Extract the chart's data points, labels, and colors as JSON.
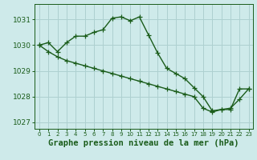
{
  "title": "Graphe pression niveau de la mer (hPa)",
  "bg_color": "#ceeaea",
  "line_color": "#1a5c1a",
  "grid_color": "#aed0d0",
  "ylim": [
    1026.75,
    1031.6
  ],
  "xlim": [
    -0.5,
    23.5
  ],
  "yticks": [
    1027,
    1028,
    1029,
    1030,
    1031
  ],
  "xticks": [
    0,
    1,
    2,
    3,
    4,
    5,
    6,
    7,
    8,
    9,
    10,
    11,
    12,
    13,
    14,
    15,
    16,
    17,
    18,
    19,
    20,
    21,
    22,
    23
  ],
  "series1_x": [
    0,
    1,
    2,
    3,
    4,
    5,
    6,
    7,
    8,
    9,
    10,
    11,
    12,
    13,
    14,
    15,
    16,
    17,
    18,
    19,
    20,
    21,
    22,
    23
  ],
  "series1_y": [
    1030.0,
    1030.1,
    1029.75,
    1030.1,
    1030.35,
    1030.35,
    1030.5,
    1030.6,
    1031.05,
    1031.1,
    1030.95,
    1031.1,
    1030.4,
    1029.7,
    1029.1,
    1028.9,
    1028.7,
    1028.35,
    1028.0,
    1027.45,
    1027.5,
    1027.55,
    1027.9,
    1028.3
  ],
  "series2_x": [
    0,
    1,
    2,
    3,
    4,
    5,
    6,
    7,
    8,
    9,
    10,
    11,
    12,
    13,
    14,
    15,
    16,
    17,
    18,
    19,
    20,
    21,
    22,
    23
  ],
  "series2_y": [
    1030.0,
    1029.75,
    1029.55,
    1029.4,
    1029.3,
    1029.2,
    1029.1,
    1029.0,
    1028.9,
    1028.8,
    1028.7,
    1028.6,
    1028.5,
    1028.4,
    1028.3,
    1028.2,
    1028.1,
    1028.0,
    1027.55,
    1027.4,
    1027.5,
    1027.5,
    1028.3,
    1028.3
  ],
  "marker": "+",
  "markersize": 4,
  "linewidth": 1.0,
  "xlabel_fontsize": 7.5,
  "ytick_fontsize": 6.5,
  "xtick_fontsize": 5.0
}
